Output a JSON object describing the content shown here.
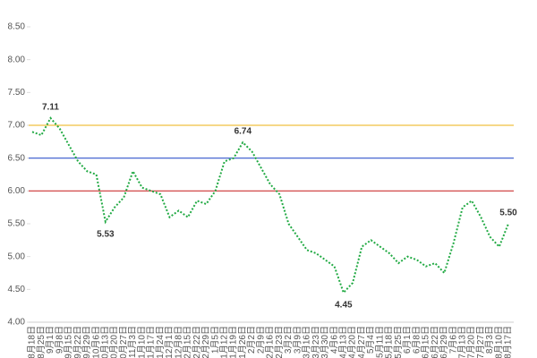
{
  "chart_data": {
    "type": "line",
    "categories": [
      "8月18日",
      "8月25日",
      "9月1日",
      "9月8日",
      "9月15日",
      "9月22日",
      "9月29日",
      "10月6日",
      "10月13日",
      "10月20日",
      "10月27日",
      "11月3日",
      "11月10日",
      "11月17日",
      "11月24日",
      "12月1日",
      "12月8日",
      "12月15日",
      "12月22日",
      "12月29日",
      "1月5日",
      "1月12日",
      "1月19日",
      "1月26日",
      "2月2日",
      "2月9日",
      "2月16日",
      "2月23日",
      "3月2日",
      "3月9日",
      "3月16日",
      "3月23日",
      "3月30日",
      "4月6日",
      "4月13日",
      "4月20日",
      "4月27日",
      "5月4日",
      "5月11日",
      "5月18日",
      "5月25日",
      "6月1日",
      "6月8日",
      "6月15日",
      "6月22日",
      "6月29日",
      "7月6日",
      "7月13日",
      "7月20日",
      "7月27日",
      "8月3日",
      "8月10日",
      "8月17日"
    ],
    "series": [
      {
        "color": "#22aa44",
        "values": [
          6.9,
          6.85,
          7.11,
          6.95,
          6.7,
          6.45,
          6.3,
          6.25,
          5.53,
          5.75,
          5.9,
          6.3,
          6.05,
          6.0,
          5.95,
          5.6,
          5.7,
          5.6,
          5.85,
          5.8,
          6.0,
          6.45,
          6.5,
          6.74,
          6.6,
          6.35,
          6.1,
          5.95,
          5.5,
          5.3,
          5.1,
          5.05,
          4.95,
          4.85,
          4.45,
          4.6,
          5.15,
          5.25,
          5.15,
          5.05,
          4.9,
          5.0,
          4.95,
          4.85,
          4.9,
          4.75,
          5.2,
          5.75,
          5.85,
          5.6,
          5.3,
          5.15,
          5.5
        ],
        "value_labels": [
          null,
          null,
          "7.11",
          null,
          null,
          null,
          null,
          null,
          "5.53",
          null,
          null,
          null,
          null,
          null,
          null,
          null,
          null,
          null,
          null,
          null,
          null,
          null,
          null,
          "6.74",
          null,
          null,
          null,
          null,
          null,
          null,
          null,
          null,
          null,
          null,
          "4.45",
          null,
          null,
          null,
          null,
          null,
          null,
          null,
          null,
          null,
          null,
          null,
          null,
          null,
          null,
          null,
          null,
          null,
          "5.50"
        ]
      }
    ],
    "ylim": [
      4,
      8.5
    ],
    "yticks": [
      {
        "value": 4,
        "label": "4.00"
      },
      {
        "value": 4.5,
        "label": "4.50"
      },
      {
        "value": 5,
        "label": "5.00"
      },
      {
        "value": 5.5,
        "label": "5.50"
      },
      {
        "value": 6,
        "label": "6.00"
      },
      {
        "value": 6.5,
        "label": "6.50"
      },
      {
        "value": 7,
        "label": "7.00"
      },
      {
        "value": 7.5,
        "label": "7.50"
      },
      {
        "value": 8,
        "label": "8.00"
      },
      {
        "value": 8.5,
        "label": "8.50"
      }
    ],
    "reference_lines": [
      {
        "value": 7,
        "color": "#f0c040"
      },
      {
        "value": 6.5,
        "color": "#3355cc"
      },
      {
        "value": 6,
        "color": "#cc3333"
      }
    ],
    "grid": false
  }
}
